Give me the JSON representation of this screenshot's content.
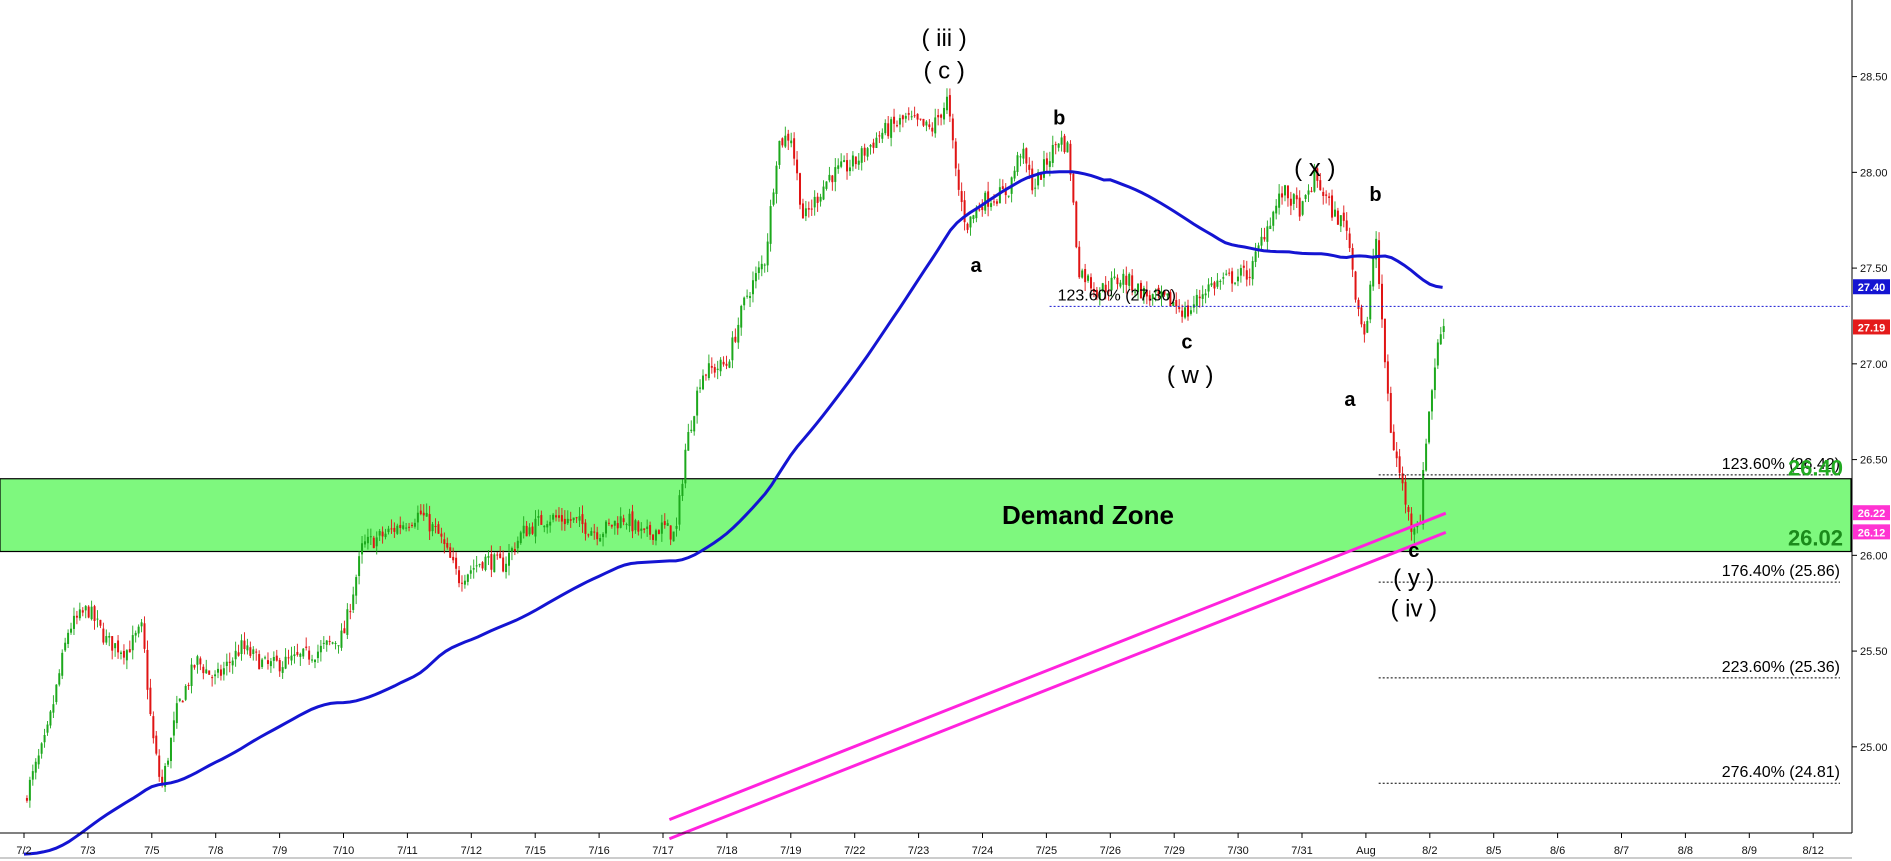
{
  "chart_data": {
    "type": "candlestick",
    "title": "",
    "xlabel": "",
    "ylabel": "",
    "ylim": [
      24.55,
      28.9
    ],
    "y_ticks": [
      "28.50",
      "28.00",
      "27.50",
      "27.00",
      "26.50",
      "26.00",
      "25.50",
      "25.00"
    ],
    "x_ticks": [
      "7/2",
      "7/3",
      "7/5",
      "7/8",
      "7/9",
      "7/10",
      "7/11",
      "7/12",
      "7/15",
      "7/16",
      "7/17",
      "7/18",
      "7/19",
      "7/22",
      "7/23",
      "7/24",
      "7/25",
      "7/26",
      "7/29",
      "7/30",
      "7/31",
      "Aug",
      "8/2",
      "8/5",
      "8/6",
      "8/7",
      "8/8",
      "8/9",
      "8/12"
    ],
    "price_path": [
      [
        0,
        24.72
      ],
      [
        0.35,
        25.05
      ],
      [
        0.7,
        25.62
      ],
      [
        1.0,
        25.72
      ],
      [
        1.3,
        25.55
      ],
      [
        1.6,
        25.5
      ],
      [
        1.85,
        25.62
      ],
      [
        2.0,
        25.08
      ],
      [
        2.15,
        24.78
      ],
      [
        2.4,
        25.2
      ],
      [
        2.7,
        25.45
      ],
      [
        3.0,
        25.35
      ],
      [
        3.4,
        25.52
      ],
      [
        3.8,
        25.42
      ],
      [
        4.2,
        25.45
      ],
      [
        4.6,
        25.5
      ],
      [
        5.0,
        25.58
      ],
      [
        5.3,
        26.05
      ],
      [
        5.6,
        26.1
      ],
      [
        6.0,
        26.18
      ],
      [
        6.2,
        26.22
      ],
      [
        6.5,
        26.1
      ],
      [
        6.8,
        25.88
      ],
      [
        7.2,
        25.98
      ],
      [
        7.5,
        25.95
      ],
      [
        7.8,
        26.12
      ],
      [
        8.2,
        26.2
      ],
      [
        8.6,
        26.18
      ],
      [
        9.0,
        26.12
      ],
      [
        9.4,
        26.2
      ],
      [
        9.7,
        26.1
      ],
      [
        10.0,
        26.15
      ],
      [
        10.2,
        26.1
      ],
      [
        10.35,
        26.55
      ],
      [
        10.6,
        26.95
      ],
      [
        11.0,
        27.0
      ],
      [
        11.3,
        27.35
      ],
      [
        11.6,
        27.55
      ],
      [
        11.8,
        28.15
      ],
      [
        12.0,
        28.2
      ],
      [
        12.2,
        27.75
      ],
      [
        12.6,
        27.98
      ],
      [
        13.0,
        28.05
      ],
      [
        13.4,
        28.2
      ],
      [
        13.8,
        28.28
      ],
      [
        14.2,
        28.22
      ],
      [
        14.45,
        28.38
      ],
      [
        14.6,
        27.95
      ],
      [
        14.75,
        27.72
      ],
      [
        15.0,
        27.85
      ],
      [
        15.4,
        27.9
      ],
      [
        15.6,
        28.12
      ],
      [
        15.8,
        27.92
      ],
      [
        16.2,
        28.18
      ],
      [
        16.35,
        28.12
      ],
      [
        16.5,
        27.5
      ],
      [
        16.8,
        27.38
      ],
      [
        17.2,
        27.45
      ],
      [
        17.6,
        27.35
      ],
      [
        18.0,
        27.32
      ],
      [
        18.2,
        27.26
      ],
      [
        18.5,
        27.4
      ],
      [
        18.9,
        27.45
      ],
      [
        19.2,
        27.48
      ],
      [
        19.4,
        27.68
      ],
      [
        19.7,
        27.9
      ],
      [
        20.0,
        27.8
      ],
      [
        20.2,
        27.98
      ],
      [
        20.5,
        27.78
      ],
      [
        20.7,
        27.72
      ],
      [
        20.85,
        27.35
      ],
      [
        21.0,
        27.12
      ],
      [
        21.15,
        27.7
      ],
      [
        21.25,
        27.2
      ],
      [
        21.4,
        26.62
      ],
      [
        21.55,
        26.4
      ],
      [
        21.7,
        26.15
      ],
      [
        21.85,
        26.2
      ],
      [
        21.95,
        26.65
      ],
      [
        22.1,
        27.05
      ],
      [
        22.25,
        27.28
      ]
    ],
    "moving_average_blue_last": 27.4,
    "current_price": 27.19,
    "channel_upper_last": 26.22,
    "channel_lower_last": 26.12,
    "demand_zone": {
      "label": "Demand Zone",
      "top": 26.4,
      "bottom": 26.02,
      "top_label": "26.40",
      "bottom_label": "26.02"
    },
    "fib_levels": [
      {
        "label": "123.60% (27.30)",
        "value": 27.3
      },
      {
        "label": "123.60% (26.42)",
        "value": 26.42
      },
      {
        "label": "176.40% (25.86)",
        "value": 25.86
      },
      {
        "label": "223.60% (25.36)",
        "value": 25.36
      },
      {
        "label": "276.40% (24.81)",
        "value": 24.81
      }
    ],
    "wave_labels": [
      {
        "text": "( iii )",
        "x": 14.4,
        "y": 28.66
      },
      {
        "text": "( c )",
        "x": 14.4,
        "y": 28.49
      },
      {
        "text": "b",
        "x": 16.2,
        "y": 28.25
      },
      {
        "text": "a",
        "x": 14.9,
        "y": 27.48
      },
      {
        "text": "( x )",
        "x": 20.2,
        "y": 27.98
      },
      {
        "text": "b",
        "x": 21.15,
        "y": 27.85
      },
      {
        "text": "c",
        "x": 18.2,
        "y": 27.08
      },
      {
        "text": "( w )",
        "x": 18.25,
        "y": 26.9
      },
      {
        "text": "a",
        "x": 20.75,
        "y": 26.78
      },
      {
        "text": "c",
        "x": 21.75,
        "y": 25.99
      },
      {
        "text": "( y )",
        "x": 21.75,
        "y": 25.84
      },
      {
        "text": "( iv )",
        "x": 21.75,
        "y": 25.68
      }
    ],
    "tags": [
      {
        "text": "27.40",
        "value": 27.4,
        "color": "#1414d2"
      },
      {
        "text": "27.19",
        "value": 27.19,
        "color": "#e41b1b"
      },
      {
        "text": "26.22",
        "value": 26.22,
        "color": "#ff33d2"
      },
      {
        "text": "26.12",
        "value": 26.12,
        "color": "#ff33d2"
      }
    ],
    "colors": {
      "up": "#1ca81c",
      "down": "#e01414",
      "ma": "#1414d2",
      "channel": "#ff22dd",
      "zone": "#7ef87e",
      "zone_border": "#000000",
      "fib_blue": "#1414d2",
      "zone_top_label": "#22aa22",
      "zone_bottom_label": "#1b8a1b"
    }
  }
}
